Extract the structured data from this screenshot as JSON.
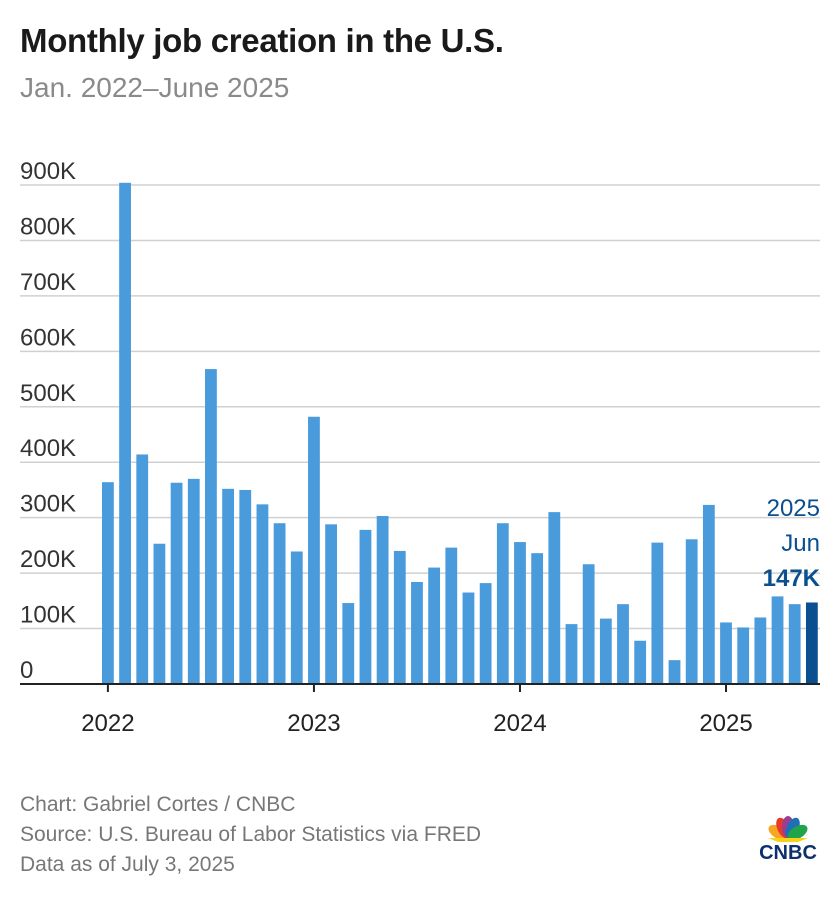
{
  "header": {
    "title": "Monthly job creation in the U.S.",
    "subtitle": "Jan. 2022–June 2025"
  },
  "chart_data": {
    "type": "bar",
    "title": "Monthly job creation in the U.S.",
    "subtitle": "Jan. 2022–June 2025",
    "xlabel": "",
    "ylabel": "",
    "ylim": [
      0,
      900
    ],
    "y_unit": "thousands of jobs",
    "yticks": [
      "0",
      "100K",
      "200K",
      "300K",
      "400K",
      "500K",
      "600K",
      "700K",
      "800K",
      "900K"
    ],
    "xticks": [
      "2022",
      "2023",
      "2024",
      "2025"
    ],
    "grid": true,
    "bar_color": "#4a9bdc",
    "highlight_color": "#0a4f8f",
    "categories": [
      "Jan 2022",
      "Feb 2022",
      "Mar 2022",
      "Apr 2022",
      "May 2022",
      "Jun 2022",
      "Jul 2022",
      "Aug 2022",
      "Sep 2022",
      "Oct 2022",
      "Nov 2022",
      "Dec 2022",
      "Jan 2023",
      "Feb 2023",
      "Mar 2023",
      "Apr 2023",
      "May 2023",
      "Jun 2023",
      "Jul 2023",
      "Aug 2023",
      "Sep 2023",
      "Oct 2023",
      "Nov 2023",
      "Dec 2023",
      "Jan 2024",
      "Feb 2024",
      "Mar 2024",
      "Apr 2024",
      "May 2024",
      "Jun 2024",
      "Jul 2024",
      "Aug 2024",
      "Sep 2024",
      "Oct 2024",
      "Nov 2024",
      "Dec 2024",
      "Jan 2025",
      "Feb 2025",
      "Mar 2025",
      "Apr 2025",
      "May 2025",
      "Jun 2025"
    ],
    "values": [
      364,
      904,
      414,
      253,
      363,
      370,
      568,
      352,
      350,
      324,
      290,
      239,
      482,
      288,
      146,
      278,
      303,
      240,
      184,
      210,
      246,
      165,
      182,
      290,
      256,
      236,
      310,
      108,
      216,
      118,
      144,
      78,
      255,
      43,
      261,
      323,
      111,
      102,
      120,
      158,
      144,
      147
    ],
    "annotation": {
      "year": "2025",
      "month": "Jun",
      "value": "147K"
    }
  },
  "footer": {
    "credit": "Chart: Gabriel Cortes / CNBC",
    "source": "Source: U.S. Bureau of Labor Statistics via FRED",
    "asof": "Data as of July 3, 2025"
  },
  "logo": {
    "text": "CNBC",
    "colors": [
      "#f5a623",
      "#e8392b",
      "#9b3d91",
      "#1f6fb5",
      "#21a34a",
      "#f7d117"
    ]
  }
}
